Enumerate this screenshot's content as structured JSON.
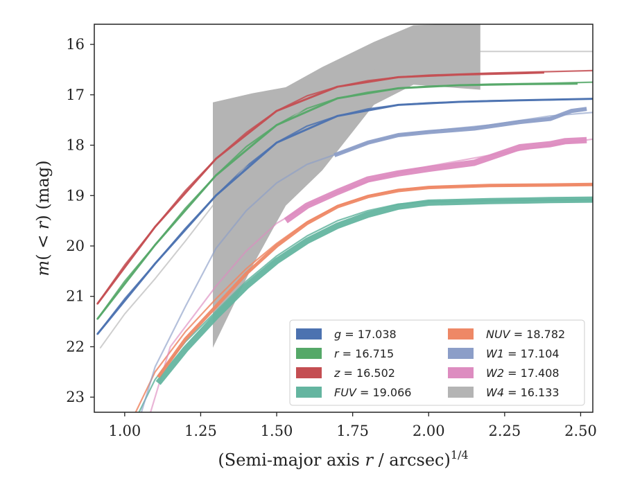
{
  "chart_data": {
    "type": "line",
    "xlabel": "(Semi-major axis r / arcsec)^{1/4}",
    "ylabel": "m(< r) (mag)",
    "xlim": [
      0.9,
      2.54
    ],
    "ylim": [
      23.3,
      15.6
    ],
    "y_inverted": true,
    "grid": false,
    "legend_placement": "lower-right",
    "legend_columns": 2,
    "x_ticks": [
      "1.00",
      "1.25",
      "1.50",
      "1.75",
      "2.00",
      "2.25",
      "2.50"
    ],
    "x_tick_values": [
      1.0,
      1.25,
      1.5,
      1.75,
      2.0,
      2.25,
      2.5
    ],
    "y_ticks": [
      "16",
      "17",
      "18",
      "19",
      "20",
      "21",
      "22",
      "23"
    ],
    "y_tick_values": [
      16,
      17,
      18,
      19,
      20,
      21,
      22,
      23
    ],
    "series": [
      {
        "name": "g = 17.038",
        "var": "g",
        "value": "17.038",
        "color": "#4c72b0",
        "model": [
          [
            0.91,
            21.75
          ],
          [
            1.0,
            21.05
          ],
          [
            1.1,
            20.35
          ],
          [
            1.2,
            19.65
          ],
          [
            1.3,
            19.0
          ],
          [
            1.4,
            18.42
          ],
          [
            1.5,
            17.95
          ],
          [
            1.6,
            17.62
          ],
          [
            1.7,
            17.42
          ],
          [
            1.8,
            17.28
          ],
          [
            1.9,
            17.2
          ],
          [
            2.0,
            17.16
          ],
          [
            2.2,
            17.12
          ],
          [
            2.4,
            17.1
          ],
          [
            2.54,
            17.08
          ]
        ],
        "measured": [
          [
            0.91,
            21.75
          ],
          [
            1.1,
            20.35
          ],
          [
            1.3,
            19.0
          ],
          [
            1.5,
            17.95
          ],
          [
            1.7,
            17.42
          ],
          [
            1.9,
            17.2
          ],
          [
            2.1,
            17.14
          ],
          [
            2.3,
            17.11
          ],
          [
            2.54,
            17.08
          ]
        ],
        "band_width": 3
      },
      {
        "name": "r = 16.715",
        "var": "r",
        "value": "16.715",
        "color": "#55a868",
        "model": [
          [
            0.91,
            21.45
          ],
          [
            1.0,
            20.7
          ],
          [
            1.1,
            19.98
          ],
          [
            1.2,
            19.25
          ],
          [
            1.3,
            18.6
          ],
          [
            1.4,
            18.03
          ],
          [
            1.5,
            17.6
          ],
          [
            1.6,
            17.27
          ],
          [
            1.7,
            17.07
          ],
          [
            1.8,
            16.95
          ],
          [
            1.9,
            16.87
          ],
          [
            2.0,
            16.83
          ],
          [
            2.2,
            16.79
          ],
          [
            2.4,
            16.77
          ],
          [
            2.54,
            16.75
          ]
        ],
        "measured": [
          [
            0.91,
            21.45
          ],
          [
            1.1,
            19.98
          ],
          [
            1.3,
            18.6
          ],
          [
            1.5,
            17.6
          ],
          [
            1.7,
            17.07
          ],
          [
            1.9,
            16.87
          ],
          [
            2.1,
            16.81
          ],
          [
            2.3,
            16.79
          ],
          [
            2.49,
            16.78
          ]
        ],
        "band_width": 3
      },
      {
        "name": "z = 16.502",
        "var": "z",
        "value": "16.502",
        "color": "#c44e52",
        "model": [
          [
            0.91,
            21.15
          ],
          [
            1.0,
            20.38
          ],
          [
            1.1,
            19.62
          ],
          [
            1.2,
            18.9
          ],
          [
            1.3,
            18.27
          ],
          [
            1.4,
            17.75
          ],
          [
            1.5,
            17.32
          ],
          [
            1.6,
            17.02
          ],
          [
            1.7,
            16.84
          ],
          [
            1.8,
            16.72
          ],
          [
            1.9,
            16.65
          ],
          [
            2.0,
            16.61
          ],
          [
            2.2,
            16.57
          ],
          [
            2.4,
            16.54
          ],
          [
            2.54,
            16.52
          ]
        ],
        "measured": [
          [
            0.91,
            21.15
          ],
          [
            1.1,
            19.62
          ],
          [
            1.3,
            18.27
          ],
          [
            1.5,
            17.32
          ],
          [
            1.7,
            16.84
          ],
          [
            1.9,
            16.65
          ],
          [
            2.1,
            16.6
          ],
          [
            2.38,
            16.56
          ]
        ],
        "band_width": 3
      },
      {
        "name": "FUV = 19.066",
        "var": "FUV",
        "value": "19.066",
        "color": "#64b5a0",
        "model": [
          [
            0.99,
            24.0
          ],
          [
            1.1,
            22.65
          ],
          [
            1.2,
            21.9
          ],
          [
            1.3,
            21.3
          ],
          [
            1.4,
            20.7
          ],
          [
            1.5,
            20.2
          ],
          [
            1.6,
            19.8
          ],
          [
            1.7,
            19.5
          ],
          [
            1.8,
            19.3
          ],
          [
            1.9,
            19.17
          ],
          [
            2.0,
            19.12
          ],
          [
            2.2,
            19.1
          ],
          [
            2.54,
            19.08
          ]
        ],
        "measured": [
          [
            1.11,
            22.72
          ],
          [
            1.2,
            22.05
          ],
          [
            1.3,
            21.4
          ],
          [
            1.4,
            20.8
          ],
          [
            1.5,
            20.3
          ],
          [
            1.6,
            19.9
          ],
          [
            1.7,
            19.6
          ],
          [
            1.8,
            19.38
          ],
          [
            1.9,
            19.22
          ],
          [
            2.0,
            19.14
          ],
          [
            2.2,
            19.11
          ],
          [
            2.4,
            19.09
          ],
          [
            2.54,
            19.08
          ]
        ],
        "band_width": 9
      },
      {
        "name": "NUV = 18.782",
        "var": "NUV",
        "value": "18.782",
        "color": "#ee8866",
        "model": [
          [
            0.98,
            24.0
          ],
          [
            1.1,
            22.5
          ],
          [
            1.2,
            21.7
          ],
          [
            1.3,
            21.05
          ],
          [
            1.4,
            20.45
          ],
          [
            1.5,
            19.95
          ],
          [
            1.6,
            19.52
          ],
          [
            1.7,
            19.2
          ],
          [
            1.8,
            19.0
          ],
          [
            1.9,
            18.88
          ],
          [
            2.0,
            18.83
          ],
          [
            2.2,
            18.8
          ],
          [
            2.54,
            18.78
          ]
        ],
        "measured": [
          [
            1.11,
            22.6
          ],
          [
            1.2,
            21.85
          ],
          [
            1.3,
            21.2
          ],
          [
            1.4,
            20.55
          ],
          [
            1.5,
            20.0
          ],
          [
            1.6,
            19.55
          ],
          [
            1.7,
            19.22
          ],
          [
            1.8,
            19.02
          ],
          [
            1.9,
            18.9
          ],
          [
            2.0,
            18.84
          ],
          [
            2.2,
            18.8
          ],
          [
            2.4,
            18.79
          ],
          [
            2.54,
            18.78
          ]
        ],
        "band_width": 5
      },
      {
        "name": "W1 = 17.104",
        "var": "W1",
        "value": "17.104",
        "color": "#8c9ec8",
        "model": [
          [
            1.02,
            24.0
          ],
          [
            1.1,
            22.4
          ],
          [
            1.2,
            21.2
          ],
          [
            1.3,
            20.05
          ],
          [
            1.4,
            19.3
          ],
          [
            1.5,
            18.75
          ],
          [
            1.6,
            18.38
          ],
          [
            1.7,
            18.17
          ],
          [
            1.8,
            17.95
          ],
          [
            1.9,
            17.8
          ],
          [
            2.0,
            17.72
          ],
          [
            2.2,
            17.6
          ],
          [
            2.4,
            17.42
          ],
          [
            2.54,
            17.35
          ]
        ],
        "measured": [
          [
            1.69,
            18.2
          ],
          [
            1.8,
            17.95
          ],
          [
            1.9,
            17.8
          ],
          [
            2.0,
            17.74
          ],
          [
            2.15,
            17.67
          ],
          [
            2.3,
            17.54
          ],
          [
            2.4,
            17.48
          ],
          [
            2.47,
            17.32
          ],
          [
            2.52,
            17.28
          ]
        ],
        "band_width": 6
      },
      {
        "name": "W2 = 17.408",
        "var": "W2",
        "value": "17.408",
        "color": "#dd8cc0",
        "model": [
          [
            1.05,
            24.0
          ],
          [
            1.15,
            22.0
          ],
          [
            1.3,
            20.8
          ],
          [
            1.4,
            20.1
          ],
          [
            1.5,
            19.55
          ],
          [
            1.6,
            19.2
          ],
          [
            1.7,
            18.93
          ],
          [
            1.8,
            18.72
          ],
          [
            1.9,
            18.55
          ],
          [
            2.0,
            18.42
          ],
          [
            2.2,
            18.2
          ],
          [
            2.4,
            18.0
          ],
          [
            2.54,
            17.88
          ]
        ],
        "measured": [
          [
            1.53,
            19.5
          ],
          [
            1.6,
            19.2
          ],
          [
            1.7,
            18.93
          ],
          [
            1.8,
            18.68
          ],
          [
            1.9,
            18.56
          ],
          [
            2.0,
            18.47
          ],
          [
            2.15,
            18.35
          ],
          [
            2.3,
            18.04
          ],
          [
            2.4,
            17.98
          ],
          [
            2.45,
            17.92
          ],
          [
            2.52,
            17.9
          ]
        ],
        "band_width": 9
      },
      {
        "name": "W4 = 16.133",
        "var": "W4",
        "value": "16.133",
        "color": "#b4b4b4",
        "model": [
          [
            0.92,
            22.02
          ],
          [
            1.0,
            21.35
          ],
          [
            1.1,
            20.65
          ],
          [
            1.2,
            19.9
          ],
          [
            1.3,
            19.12
          ],
          [
            1.4,
            18.4
          ],
          [
            1.5,
            17.7
          ],
          [
            1.6,
            17.22
          ],
          [
            1.7,
            16.85
          ],
          [
            1.8,
            16.55
          ],
          [
            1.9,
            16.27
          ],
          [
            1.95,
            16.16
          ],
          [
            2.0,
            16.14
          ],
          [
            2.54,
            16.14
          ]
        ],
        "band_x": [
          1.29,
          1.42,
          1.53,
          1.65,
          1.82,
          1.95,
          2.17
        ],
        "band_upper": [
          17.15,
          16.97,
          16.85,
          16.45,
          15.95,
          15.62,
          15.58
        ],
        "band_lower": [
          22.02,
          20.4,
          19.2,
          18.5,
          17.2,
          16.8,
          16.9
        ]
      }
    ],
    "legend_order": [
      "g = 17.038",
      "NUV = 18.782",
      "r = 16.715",
      "W1 = 17.104",
      "z = 16.502",
      "W2 = 17.408",
      "FUV = 19.066",
      "W4 = 16.133"
    ]
  }
}
